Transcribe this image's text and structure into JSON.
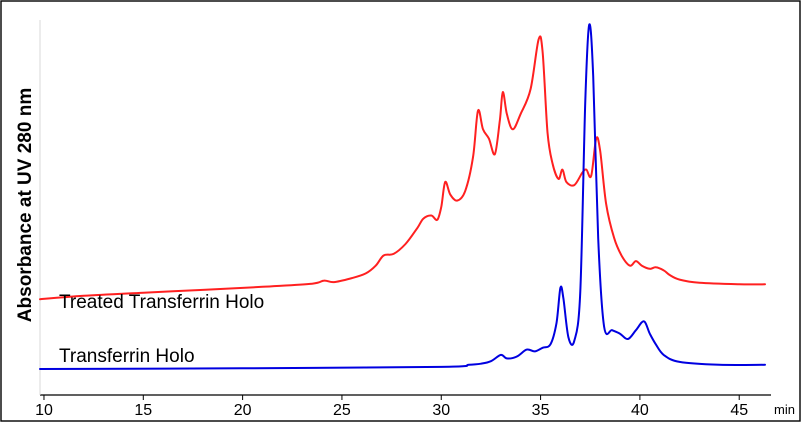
{
  "chart_data": {
    "type": "line",
    "xlabel": "min",
    "ylabel": "Absorbance at UV 280 nm",
    "xlim": [
      9.8,
      46.6
    ],
    "ylim": [
      0,
      1.0
    ],
    "xticks": [
      10,
      15,
      20,
      25,
      30,
      35,
      40,
      45
    ],
    "grid": false,
    "legend": "none",
    "series": [
      {
        "name": "Treated Transferrin Holo",
        "color": "#ff2020",
        "points": [
          [
            9.8,
            0.122
          ],
          [
            12,
            0.133
          ],
          [
            15,
            0.143
          ],
          [
            18,
            0.152
          ],
          [
            21,
            0.162
          ],
          [
            23.5,
            0.172
          ],
          [
            24.1,
            0.182
          ],
          [
            24.6,
            0.177
          ],
          [
            25.5,
            0.19
          ],
          [
            26.2,
            0.205
          ],
          [
            26.7,
            0.23
          ],
          [
            27.1,
            0.263
          ],
          [
            27.6,
            0.268
          ],
          [
            28.2,
            0.3
          ],
          [
            28.8,
            0.352
          ],
          [
            29.1,
            0.382
          ],
          [
            29.5,
            0.392
          ],
          [
            29.8,
            0.378
          ],
          [
            30.0,
            0.42
          ],
          [
            30.2,
            0.5
          ],
          [
            30.45,
            0.46
          ],
          [
            30.8,
            0.44
          ],
          [
            31.2,
            0.47
          ],
          [
            31.6,
            0.58
          ],
          [
            31.85,
            0.73
          ],
          [
            32.1,
            0.67
          ],
          [
            32.4,
            0.64
          ],
          [
            32.7,
            0.59
          ],
          [
            32.95,
            0.7
          ],
          [
            33.1,
            0.79
          ],
          [
            33.3,
            0.72
          ],
          [
            33.6,
            0.67
          ],
          [
            34.0,
            0.72
          ],
          [
            34.5,
            0.8
          ],
          [
            34.9,
            0.96
          ],
          [
            35.1,
            0.92
          ],
          [
            35.35,
            0.66
          ],
          [
            35.6,
            0.56
          ],
          [
            35.9,
            0.51
          ],
          [
            36.1,
            0.54
          ],
          [
            36.3,
            0.5
          ],
          [
            36.7,
            0.49
          ],
          [
            37.1,
            0.53
          ],
          [
            37.3,
            0.54
          ],
          [
            37.55,
            0.52
          ],
          [
            37.8,
            0.64
          ],
          [
            38.0,
            0.6
          ],
          [
            38.3,
            0.43
          ],
          [
            38.7,
            0.32
          ],
          [
            39.1,
            0.26
          ],
          [
            39.5,
            0.23
          ],
          [
            39.8,
            0.245
          ],
          [
            40.1,
            0.23
          ],
          [
            40.5,
            0.22
          ],
          [
            40.8,
            0.225
          ],
          [
            41.2,
            0.215
          ],
          [
            41.5,
            0.2
          ],
          [
            42.0,
            0.185
          ],
          [
            43.0,
            0.175
          ],
          [
            45.0,
            0.17
          ],
          [
            46.3,
            0.17
          ]
        ]
      },
      {
        "name": "Transferrin Holo",
        "color": "#0000e0",
        "points": [
          [
            9.8,
            0.0
          ],
          [
            20,
            0.002
          ],
          [
            30,
            0.006
          ],
          [
            31.4,
            0.012
          ],
          [
            32.0,
            0.015
          ],
          [
            32.5,
            0.022
          ],
          [
            33.0,
            0.04
          ],
          [
            33.3,
            0.03
          ],
          [
            33.8,
            0.035
          ],
          [
            34.3,
            0.055
          ],
          [
            34.7,
            0.05
          ],
          [
            35.1,
            0.06
          ],
          [
            35.5,
            0.07
          ],
          [
            35.8,
            0.13
          ],
          [
            36.0,
            0.23
          ],
          [
            36.15,
            0.2
          ],
          [
            36.4,
            0.09
          ],
          [
            36.7,
            0.08
          ],
          [
            37.0,
            0.22
          ],
          [
            37.25,
            0.76
          ],
          [
            37.45,
            0.975
          ],
          [
            37.65,
            0.83
          ],
          [
            37.9,
            0.37
          ],
          [
            38.2,
            0.12
          ],
          [
            38.6,
            0.11
          ],
          [
            39.0,
            0.1
          ],
          [
            39.4,
            0.085
          ],
          [
            39.8,
            0.11
          ],
          [
            40.2,
            0.135
          ],
          [
            40.5,
            0.1
          ],
          [
            40.8,
            0.07
          ],
          [
            41.2,
            0.04
          ],
          [
            42.0,
            0.02
          ],
          [
            44.0,
            0.012
          ],
          [
            46.3,
            0.012
          ]
        ]
      }
    ]
  }
}
